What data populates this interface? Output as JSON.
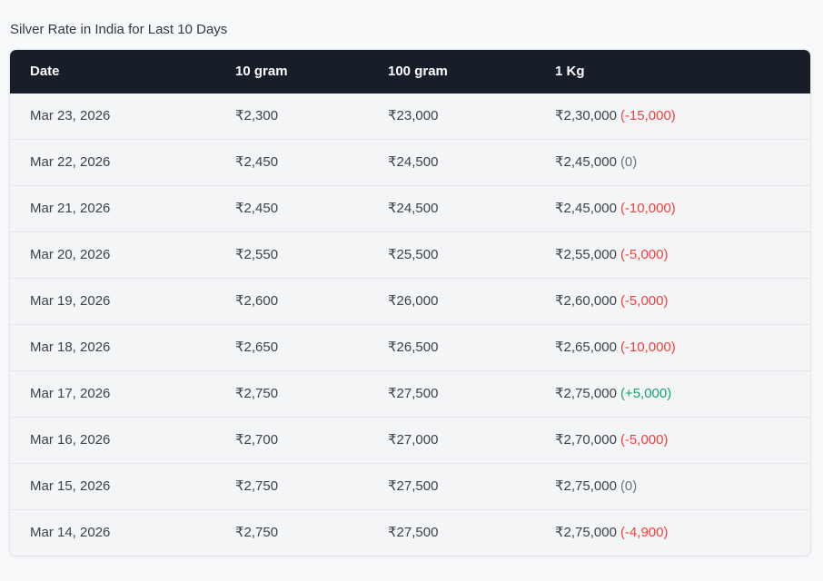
{
  "title": "Silver Rate in India for Last 10 Days",
  "colors": {
    "page_bg": "#f8f9fb",
    "title_text": "#33383e",
    "card_border": "#e2e4e8",
    "header_bg": "#171e2a",
    "header_text": "#ffffff",
    "row_bg": "#f4f5f7",
    "row_divider": "#e4e6e9",
    "text": "#3d4248",
    "negative": "#f43f3b",
    "positive": "#18a36a",
    "neutral": "#6d7378"
  },
  "table": {
    "headers": [
      "Date",
      "10 gram",
      "100 gram",
      "1 Kg"
    ],
    "rows": [
      {
        "date": "Mar 23, 2026",
        "g10": "₹2,300",
        "g100": "₹23,000",
        "kg": "₹2,30,000",
        "change": "(-15,000)",
        "change_dir": "down"
      },
      {
        "date": "Mar 22, 2026",
        "g10": "₹2,450",
        "g100": "₹24,500",
        "kg": "₹2,45,000",
        "change": "(0)",
        "change_dir": "zero"
      },
      {
        "date": "Mar 21, 2026",
        "g10": "₹2,450",
        "g100": "₹24,500",
        "kg": "₹2,45,000",
        "change": "(-10,000)",
        "change_dir": "down"
      },
      {
        "date": "Mar 20, 2026",
        "g10": "₹2,550",
        "g100": "₹25,500",
        "kg": "₹2,55,000",
        "change": "(-5,000)",
        "change_dir": "down"
      },
      {
        "date": "Mar 19, 2026",
        "g10": "₹2,600",
        "g100": "₹26,000",
        "kg": "₹2,60,000",
        "change": "(-5,000)",
        "change_dir": "down"
      },
      {
        "date": "Mar 18, 2026",
        "g10": "₹2,650",
        "g100": "₹26,500",
        "kg": "₹2,65,000",
        "change": "(-10,000)",
        "change_dir": "down"
      },
      {
        "date": "Mar 17, 2026",
        "g10": "₹2,750",
        "g100": "₹27,500",
        "kg": "₹2,75,000",
        "change": "(+5,000)",
        "change_dir": "up"
      },
      {
        "date": "Mar 16, 2026",
        "g10": "₹2,700",
        "g100": "₹27,000",
        "kg": "₹2,70,000",
        "change": "(-5,000)",
        "change_dir": "down"
      },
      {
        "date": "Mar 15, 2026",
        "g10": "₹2,750",
        "g100": "₹27,500",
        "kg": "₹2,75,000",
        "change": "(0)",
        "change_dir": "zero"
      },
      {
        "date": "Mar 14, 2026",
        "g10": "₹2,750",
        "g100": "₹27,500",
        "kg": "₹2,75,000",
        "change": "(-4,900)",
        "change_dir": "down"
      }
    ]
  }
}
